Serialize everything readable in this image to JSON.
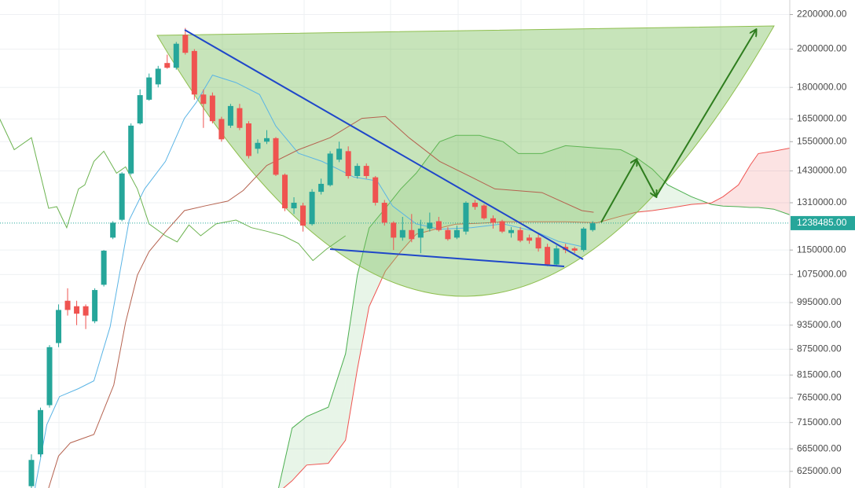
{
  "chart_data": {
    "type": "candlestick",
    "log_scale": true,
    "grid": true,
    "up_color": "#26a69a",
    "down_color": "#ef5350",
    "xlim": [
      -3.47,
      83.77
    ],
    "ylim": [
      597000,
      2290000
    ],
    "yticks": [
      {
        "value": 2200000,
        "label": "2200000.00"
      },
      {
        "value": 2000000,
        "label": "2000000.00"
      },
      {
        "value": 1800000,
        "label": "1800000.00"
      },
      {
        "value": 1650000,
        "label": "1650000.00"
      },
      {
        "value": 1550000,
        "label": "1550000.00"
      },
      {
        "value": 1430000,
        "label": "1430000.00"
      },
      {
        "value": 1310000,
        "label": "1310000.00"
      },
      {
        "value": 1150000,
        "label": "1150000.00"
      },
      {
        "value": 1075000,
        "label": "1075000.00"
      },
      {
        "value": 995000,
        "label": "995000.00"
      },
      {
        "value": 935000,
        "label": "935000.00"
      },
      {
        "value": 875000,
        "label": "875000.00"
      },
      {
        "value": 815000,
        "label": "815000.00"
      },
      {
        "value": 765000,
        "label": "765000.00"
      },
      {
        "value": 715000,
        "label": "715000.00"
      },
      {
        "value": 665000,
        "label": "665000.00"
      },
      {
        "value": 625000,
        "label": "625000.00"
      }
    ],
    "last_price": {
      "value": 1238485,
      "label": "1238485.00"
    },
    "x": [
      0,
      1,
      2,
      3,
      4,
      5,
      6,
      7,
      8,
      9,
      10,
      11,
      12,
      13,
      14,
      15,
      16,
      17,
      18,
      19,
      20,
      21,
      22,
      23,
      24,
      25,
      26,
      27,
      28,
      29,
      30,
      31,
      32,
      33,
      34,
      35,
      36,
      37,
      38,
      39,
      40,
      41,
      42,
      43,
      44,
      45,
      46,
      47,
      48,
      49,
      50,
      51,
      52,
      53,
      54,
      55,
      56,
      57,
      58,
      59,
      60,
      61,
      62
    ],
    "open": [
      600000,
      655000,
      750000,
      890000,
      1000000,
      985000,
      985000,
      945000,
      1045000,
      1190000,
      1250000,
      1420000,
      1630000,
      1740000,
      1815000,
      1925000,
      1900000,
      2080000,
      1990000,
      1765000,
      1760000,
      1650000,
      1620000,
      1700000,
      1630000,
      1520000,
      1550000,
      1565000,
      1415000,
      1290000,
      1300000,
      1235000,
      1350000,
      1375000,
      1475000,
      1510000,
      1410000,
      1450000,
      1405000,
      1310000,
      1240000,
      1190000,
      1215000,
      1190000,
      1220000,
      1245000,
      1215000,
      1190000,
      1210000,
      1310000,
      1300000,
      1255000,
      1245000,
      1205000,
      1215000,
      1190000,
      1190000,
      1160000,
      1105000,
      1160000,
      1155000,
      1150000,
      1215000
    ],
    "high": [
      655000,
      745000,
      885000,
      990000,
      1035000,
      1000000,
      990000,
      1035000,
      1150000,
      1245000,
      1425000,
      1630000,
      1790000,
      1870000,
      1910000,
      1970000,
      2040000,
      2120000,
      2000000,
      1790000,
      1775000,
      1660000,
      1720000,
      1720000,
      1640000,
      1560000,
      1600000,
      1570000,
      1420000,
      1330000,
      1310000,
      1360000,
      1400000,
      1510000,
      1550000,
      1530000,
      1460000,
      1460000,
      1410000,
      1320000,
      1245000,
      1260000,
      1270000,
      1250000,
      1275000,
      1260000,
      1225000,
      1230000,
      1315000,
      1320000,
      1305000,
      1265000,
      1250000,
      1225000,
      1225000,
      1200000,
      1200000,
      1170000,
      1165000,
      1170000,
      1160000,
      1225000,
      1245000
    ],
    "low": [
      595000,
      650000,
      745000,
      880000,
      960000,
      935000,
      925000,
      940000,
      1040000,
      1185000,
      1245000,
      1415000,
      1625000,
      1735000,
      1800000,
      1895000,
      1890000,
      1970000,
      1740000,
      1610000,
      1630000,
      1550000,
      1610000,
      1600000,
      1480000,
      1500000,
      1540000,
      1410000,
      1280000,
      1270000,
      1210000,
      1230000,
      1340000,
      1370000,
      1465000,
      1400000,
      1400000,
      1400000,
      1300000,
      1230000,
      1150000,
      1180000,
      1175000,
      1140000,
      1210000,
      1210000,
      1180000,
      1185000,
      1200000,
      1285000,
      1250000,
      1220000,
      1205000,
      1190000,
      1175000,
      1170000,
      1145000,
      1100000,
      1100000,
      1140000,
      1140000,
      1145000,
      1210000
    ],
    "close": [
      645000,
      740000,
      880000,
      975000,
      975000,
      965000,
      960000,
      1030000,
      1148000,
      1240000,
      1420000,
      1620000,
      1762000,
      1850000,
      1895000,
      1900000,
      2030000,
      1980000,
      1765000,
      1720000,
      1640000,
      1560000,
      1710000,
      1610000,
      1490000,
      1545000,
      1565000,
      1415000,
      1290000,
      1310000,
      1230000,
      1350000,
      1380000,
      1500000,
      1520000,
      1410000,
      1450000,
      1410000,
      1310000,
      1240000,
      1190000,
      1215000,
      1185000,
      1220000,
      1240000,
      1215000,
      1185000,
      1215000,
      1310000,
      1295000,
      1255000,
      1240000,
      1210000,
      1215000,
      1180000,
      1180000,
      1155000,
      1105000,
      1155000,
      1150000,
      1148000,
      1220000,
      1238000
    ],
    "lines": [
      {
        "color": "#5ab4e5",
        "x": [
          0.4,
          1.7,
          3.1,
          5.2,
          6.9,
          8.7,
          10.8,
          12.5,
          14.8,
          16.9,
          18.2,
          20.0,
          22.6,
          25.2,
          27.0,
          29.5,
          32.1,
          33.9,
          35.6,
          38.2,
          39.9,
          42.5,
          45.1,
          48.6,
          52.1,
          55.6,
          58.2,
          60.8
        ],
        "values": [
          597000,
          711000,
          768000,
          785000,
          802000,
          931000,
          1249000,
          1361000,
          1468000,
          1653000,
          1726000,
          1862000,
          1824000,
          1765000,
          1618000,
          1501000,
          1468000,
          1437000,
          1406000,
          1391000,
          1298000,
          1236000,
          1218000,
          1223000,
          1236000,
          1211000,
          1178000,
          1161000
        ]
      },
      {
        "color": "#b5624f",
        "x": [
          1.9,
          3.0,
          4.3,
          6.9,
          9.1,
          10.4,
          11.7,
          13.0,
          14.8,
          16.9,
          19.1,
          21.7,
          23.4,
          26.0,
          29.5,
          33.0,
          36.5,
          39.1,
          41.7,
          45.1,
          48.6,
          51.2,
          56.4,
          60.8,
          62.1
        ],
        "values": [
          597000,
          652000,
          676000,
          692000,
          793000,
          942000,
          1073000,
          1145000,
          1209000,
          1282000,
          1298000,
          1316000,
          1355000,
          1452000,
          1516000,
          1567000,
          1653000,
          1661000,
          1567000,
          1468000,
          1406000,
          1361000,
          1347000,
          1282000,
          1276000
        ]
      },
      {
        "color": "#6cb350",
        "x": [
          -3.5,
          -1.9,
          0,
          1.9,
          2.8,
          3.9,
          5.2,
          5.9,
          6.9,
          8.0,
          9.4,
          10.4,
          11.7,
          13.0,
          14.8,
          16.1,
          17.4,
          18.7,
          20.4,
          22.6,
          24.3,
          26.0,
          27.8,
          29.5,
          31.1,
          32.6,
          34.7
        ],
        "values": [
          1650000,
          1516000,
          1567000,
          1290000,
          1296000,
          1223000,
          1361000,
          1376000,
          1468000,
          1510000,
          1421000,
          1446000,
          1361000,
          1236000,
          1196000,
          1176000,
          1232000,
          1196000,
          1236000,
          1249000,
          1223000,
          1211000,
          1196000,
          1171000,
          1117000,
          1153000,
          1196000
        ]
      }
    ],
    "cloud": {
      "up_color": "#4caf50",
      "down_color": "#ef5350",
      "x": [
        27.3,
        28.8,
        30.4,
        32.8,
        34.7,
        36.0,
        37.3,
        39.1,
        40.8,
        42.5,
        45.1,
        46.9,
        49.5,
        52.1,
        53.8,
        56.4,
        59.0,
        62.5,
        65.1,
        66.8,
        68.6,
        70.3,
        72.9,
        75.1,
        76.4,
        78.1,
        79.4,
        80.3,
        82.0,
        83.8
      ],
      "span_a": [
        597000,
        704000,
        727000,
        746000,
        864000,
        1073000,
        1222000,
        1290000,
        1361000,
        1421000,
        1550000,
        1577000,
        1577000,
        1550000,
        1500000,
        1500000,
        1533000,
        1523000,
        1516000,
        1484000,
        1437000,
        1376000,
        1332000,
        1304000,
        1298000,
        1296000,
        1293000,
        1293000,
        1287000,
        1267000
      ],
      "span_b": [
        590000,
        609000,
        636000,
        639000,
        681000,
        828000,
        984000,
        1085000,
        1145000,
        1201000,
        1222000,
        1235000,
        1238000,
        1243000,
        1243000,
        1243000,
        1243000,
        1240000,
        1262000,
        1276000,
        1282000,
        1290000,
        1304000,
        1309000,
        1332000,
        1376000,
        1453000,
        1500000,
        1510000,
        1523000
      ]
    }
  }
}
